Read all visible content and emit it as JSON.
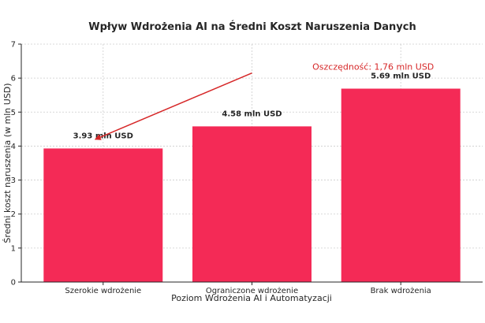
{
  "chart_data": {
    "type": "bar",
    "title": "Wpływ Wdrożenia AI na Średni Koszt Naruszenia Danych",
    "xlabel": "Poziom Wdrożenia AI i Automatyzacji",
    "ylabel": "Średni koszt naruszenia (w mln USD)",
    "categories": [
      "Szerokie wdrożenie",
      "Ograniczone wdrożenie",
      "Brak wdrożenia"
    ],
    "values": [
      3.93,
      4.58,
      5.69
    ],
    "data_labels": [
      "3.93 mln USD",
      "4.58 mln USD",
      "5.69 mln USD"
    ],
    "ylim": [
      0,
      7
    ],
    "yticks": [
      0,
      1,
      2,
      3,
      4,
      5,
      6,
      7
    ],
    "grid": true,
    "bar_color": "#f42a56",
    "annotation": {
      "text": "Oszczędność: 1,76 mln USD",
      "color": "#d62728",
      "from_category": "Szerokie wdrożenie",
      "from_value": 4.2,
      "to_category": "Ograniczone wdrożenie",
      "to_value": 6.15
    }
  }
}
